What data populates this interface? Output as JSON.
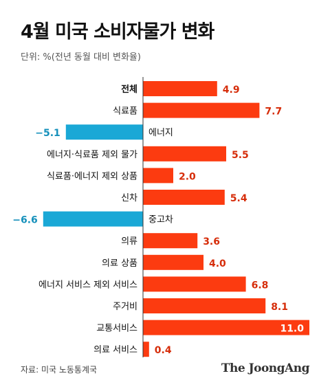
{
  "title": "4월 미국 소비자물가 변화",
  "subtitle": "단위: %(전년 동월 대비 변화율)",
  "source": "자료: 미국 노동통계국",
  "logo_text": "The JoongAng",
  "colors": {
    "positive": "#fc3b10",
    "negative": "#1aa8d6",
    "positive_label": "#d62d0a",
    "negative_label": "#1590bb",
    "axis": "#333333"
  },
  "chart_data": {
    "type": "bar",
    "orientation": "horizontal",
    "categories": [
      "전체",
      "식료품",
      "에너지",
      "에너지·식료품 제외 물가",
      "식료품·에너지 제외 상품",
      "신차",
      "중고차",
      "의류",
      "의료 상품",
      "에너지 서비스 제외 서비스",
      "주거비",
      "교통서비스",
      "의료 서비스"
    ],
    "values": [
      4.9,
      7.7,
      -5.1,
      5.5,
      2.0,
      5.4,
      -6.6,
      3.6,
      4.0,
      6.8,
      8.1,
      11.0,
      0.4
    ],
    "value_labels": [
      "4.9",
      "7.7",
      "−5.1",
      "5.5",
      "2.0",
      "5.4",
      "−6.6",
      "3.6",
      "4.0",
      "6.8",
      "8.1",
      "11.0",
      "0.4"
    ],
    "bold_categories": [
      "전체"
    ],
    "xlim": [
      -6.6,
      11.0
    ],
    "grid": false,
    "legend": "none"
  }
}
